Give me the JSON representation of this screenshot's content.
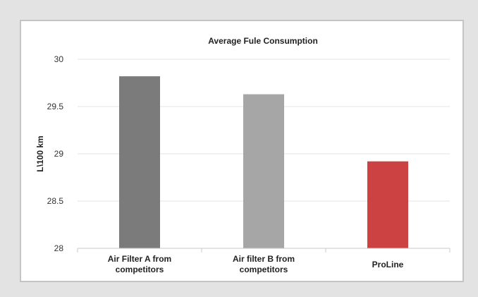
{
  "chart_data": {
    "type": "bar",
    "title": "Average Fule Consumption",
    "ylabel": "L\\100 km",
    "xlabel": "",
    "categories": [
      [
        "Air Filter A from",
        "competitors"
      ],
      [
        "Air filter B from",
        "competitors"
      ],
      [
        "ProLine"
      ]
    ],
    "values": [
      29.82,
      29.63,
      28.92
    ],
    "bar_colors": [
      "#7b7b7b",
      "#a6a6a6",
      "#cc4242"
    ],
    "ylim": [
      28,
      30
    ],
    "yticks": [
      28,
      28.5,
      29,
      29.5,
      30
    ],
    "ytick_labels": [
      "28",
      "28.5",
      "29",
      "29.5",
      "30"
    ],
    "grid": true,
    "legend": "none"
  }
}
